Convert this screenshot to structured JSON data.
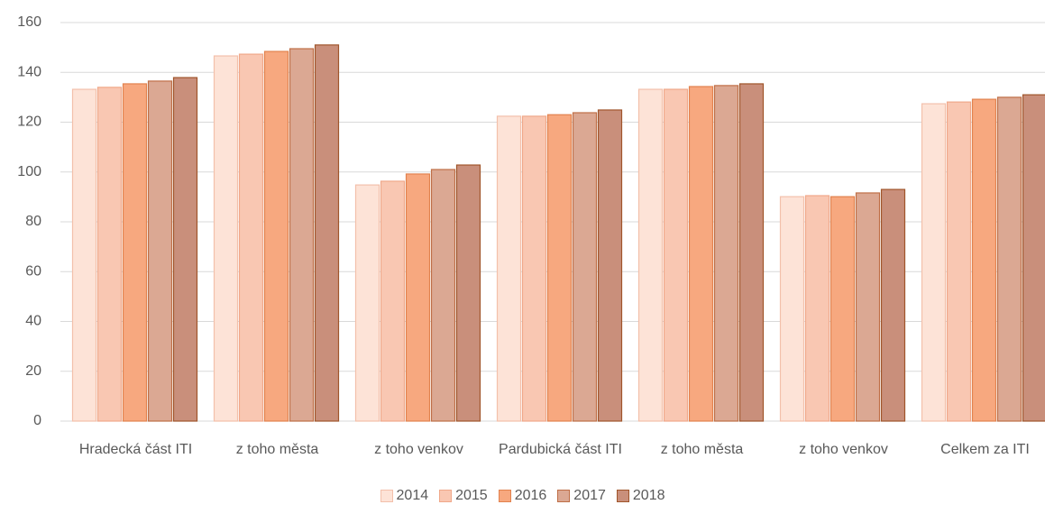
{
  "chart_data": {
    "type": "bar",
    "categories": [
      "Hradecká část ITI",
      "z toho města",
      "z toho venkov",
      "Pardubická část ITI",
      "z toho města",
      "z toho venkov",
      "Celkem za ITI"
    ],
    "series": [
      {
        "name": "2014",
        "color": "#fde3d7",
        "edgecolor": "#f3c0ab",
        "values": [
          133.2,
          146.6,
          94.8,
          122.4,
          133.2,
          90.1,
          127.4
        ]
      },
      {
        "name": "2015",
        "color": "#f9c7b2",
        "edgecolor": "#f0a88a",
        "values": [
          134,
          147.3,
          96.3,
          122.4,
          133.2,
          90.5,
          128.1
        ]
      },
      {
        "name": "2016",
        "color": "#f7a87f",
        "edgecolor": "#e2824e",
        "values": [
          135.4,
          148.4,
          99.2,
          123,
          134.3,
          90.1,
          129.2
        ]
      },
      {
        "name": "2017",
        "color": "#dba893",
        "edgecolor": "#bf6f47",
        "values": [
          136.5,
          149.5,
          101,
          123.8,
          134.7,
          91.6,
          130
        ]
      },
      {
        "name": "2018",
        "color": "#c98f7b",
        "edgecolor": "#a0552b",
        "values": [
          137.9,
          151,
          102.8,
          124.9,
          135.4,
          93,
          131
        ]
      }
    ],
    "ylim": [
      0,
      160
    ],
    "yticks": [
      0,
      20,
      40,
      60,
      80,
      100,
      120,
      140,
      160
    ],
    "grid": true,
    "legend": "bottom"
  }
}
